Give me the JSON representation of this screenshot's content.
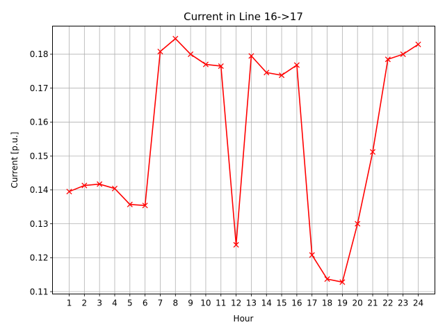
{
  "chart_data": {
    "type": "line",
    "title": "Current in Line 16->17",
    "xlabel": "Hour",
    "ylabel": "Current  [p.u.]",
    "x": [
      1,
      2,
      3,
      4,
      5,
      6,
      7,
      8,
      9,
      10,
      11,
      12,
      13,
      14,
      15,
      16,
      17,
      18,
      19,
      20,
      21,
      22,
      23,
      24
    ],
    "x_tick_labels": [
      "1",
      "2",
      "3",
      "4",
      "5",
      "6",
      "7",
      "8",
      "9",
      "10",
      "11",
      "12",
      "13",
      "14",
      "15",
      "16",
      "17",
      "18",
      "19",
      "20",
      "21",
      "22",
      "23",
      "24"
    ],
    "y_ticks": [
      0.11,
      0.12,
      0.13,
      0.14,
      0.15,
      0.16,
      0.17,
      0.18
    ],
    "y_tick_labels": [
      "0.11",
      "0.12",
      "0.13",
      "0.14",
      "0.15",
      "0.16",
      "0.17",
      "0.18"
    ],
    "xlim": [
      -0.1,
      25.1
    ],
    "ylim": [
      0.1093,
      0.1883
    ],
    "grid": true,
    "series": [
      {
        "color": "#ff0000",
        "marker": "x",
        "values": [
          0.1395,
          0.1413,
          0.1417,
          0.1404,
          0.1357,
          0.1354,
          0.1808,
          0.1846,
          0.18,
          0.177,
          0.1765,
          0.1238,
          0.1795,
          0.1746,
          0.1738,
          0.1768,
          0.1208,
          0.1137,
          0.1128,
          0.13,
          0.1512,
          0.1785,
          0.18,
          0.1829
        ]
      }
    ]
  }
}
